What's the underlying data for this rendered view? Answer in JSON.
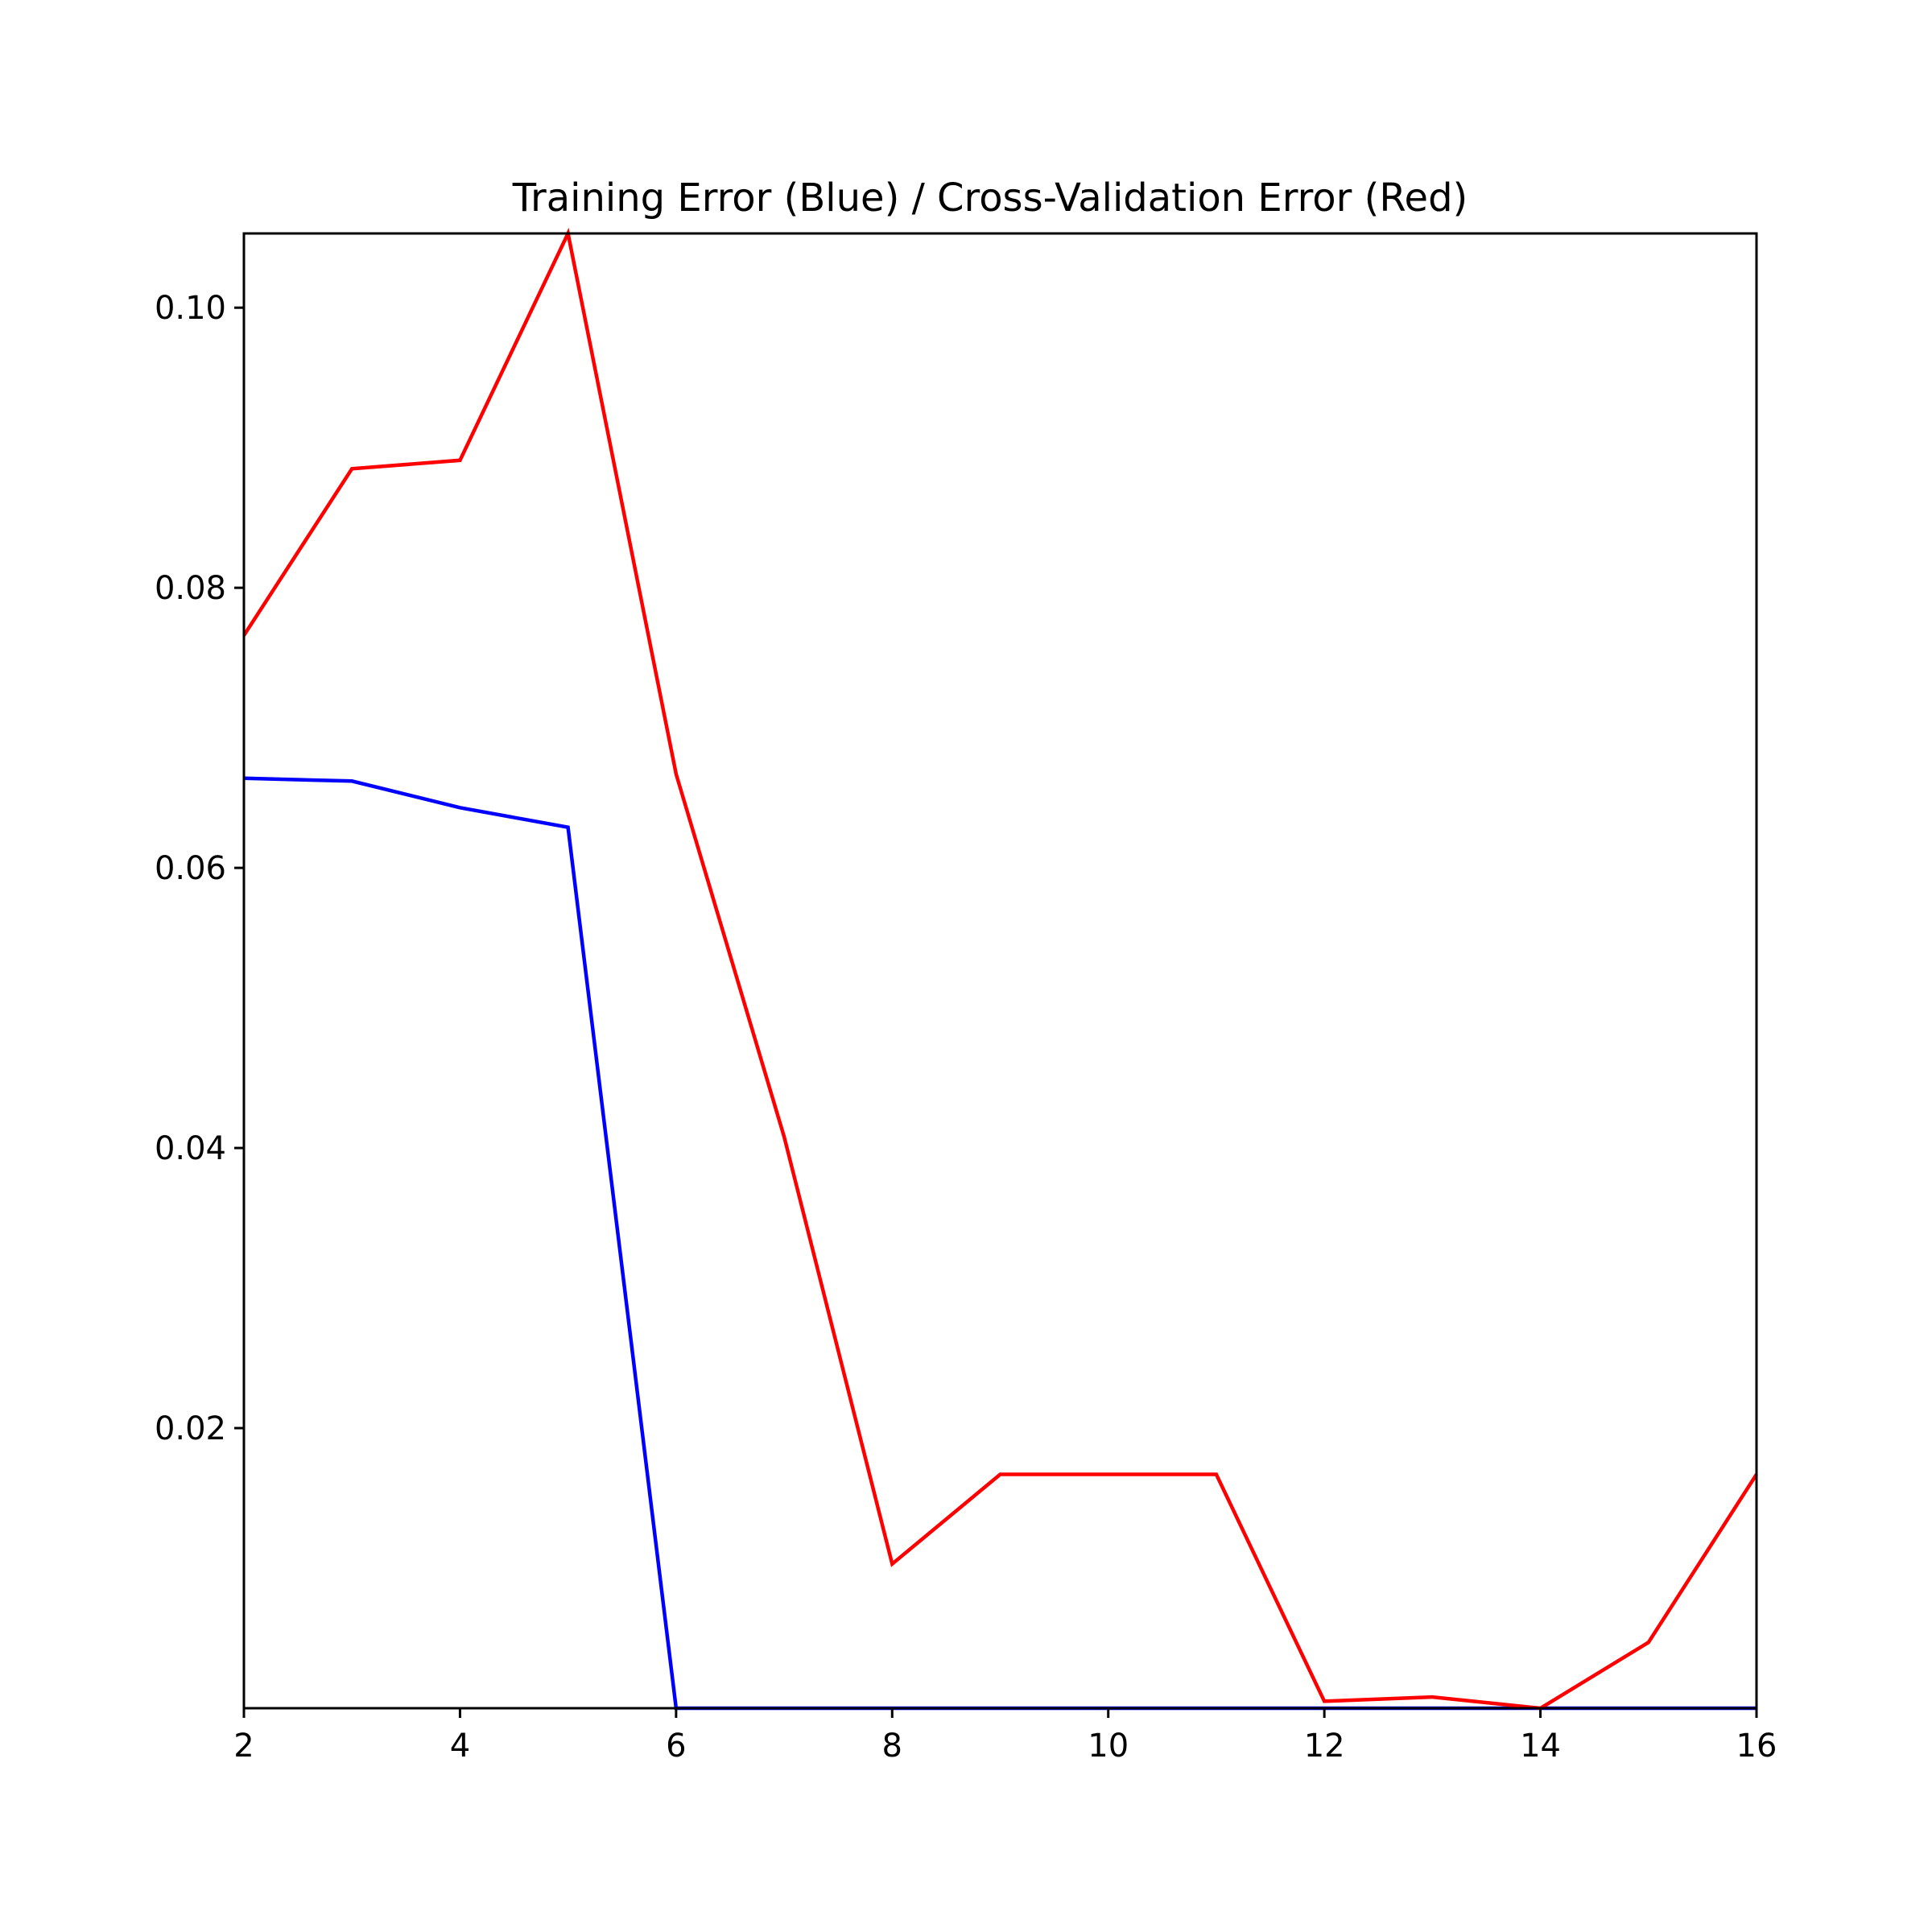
{
  "chart_data": {
    "type": "line",
    "title": "Training Error (Blue) / Cross-Validation Error (Red)",
    "xlabel": "",
    "ylabel": "",
    "xlim": [
      2,
      16
    ],
    "ylim": [
      0,
      0.1053
    ],
    "x_ticks": [
      2,
      4,
      6,
      8,
      10,
      12,
      14,
      16
    ],
    "x_tick_labels": [
      "2",
      "4",
      "6",
      "8",
      "10",
      "12",
      "14",
      "16"
    ],
    "y_ticks": [
      0.02,
      0.04,
      0.06,
      0.08,
      0.1
    ],
    "y_tick_labels": [
      "0.02",
      "0.04",
      "0.06",
      "0.08",
      "0.10"
    ],
    "grid": false,
    "x": [
      2,
      3,
      4,
      5,
      6,
      7,
      8,
      9,
      10,
      11,
      12,
      13,
      14,
      15,
      16
    ],
    "series": [
      {
        "color": "#0000ff",
        "values": [
          0.0664,
          0.0662,
          0.0643,
          0.0629,
          0.0,
          0.0,
          0.0,
          0.0,
          0.0,
          0.0,
          0.0,
          0.0,
          0.0,
          0.0,
          0.0
        ]
      },
      {
        "color": "#ff0000",
        "values": [
          0.0766,
          0.0885,
          0.0891,
          0.1053,
          0.0667,
          0.0408,
          0.0103,
          0.0167,
          0.0167,
          0.0167,
          0.0005,
          0.0008,
          0.0,
          0.0047,
          0.0167
        ]
      }
    ]
  }
}
